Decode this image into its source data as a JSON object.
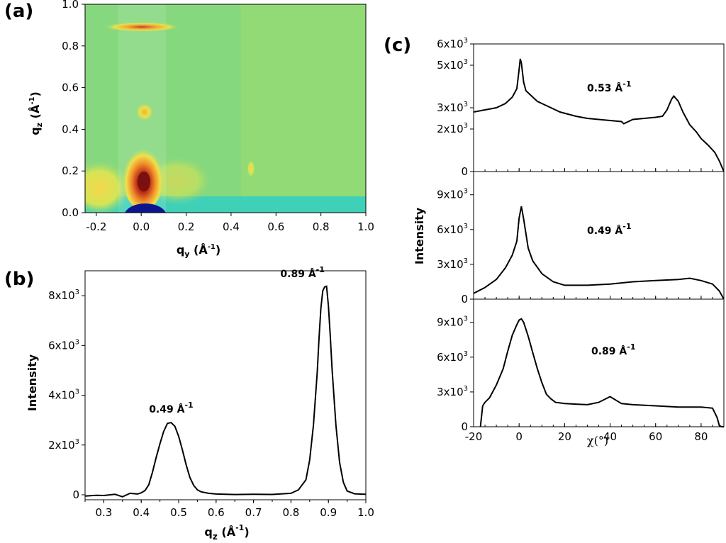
{
  "panels": {
    "a": {
      "label": "(a)"
    },
    "b": {
      "label": "(b)"
    },
    "c": {
      "label": "(c)"
    }
  },
  "chart_data": [
    {
      "panel": "(a)",
      "type": "heatmap",
      "title": "",
      "xlabel": "q_y (Å^-1)",
      "ylabel": "q_z (Å^-1)",
      "xlim": [
        -0.25,
        1.0
      ],
      "ylim": [
        0.0,
        1.0
      ],
      "xticks": [
        "-0.2",
        "0.0",
        "0.2",
        "0.4",
        "0.6",
        "0.8",
        "1.0"
      ],
      "yticks": [
        "0.0",
        "0.2",
        "0.4",
        "0.6",
        "0.8",
        "1.0"
      ],
      "colormap": "blue-green-yellow-red",
      "highlight_band_qy": [
        -0.1,
        0.1
      ],
      "features": [
        {
          "qy": 0.0,
          "qz": 0.89,
          "note": "arc"
        },
        {
          "qy": 0.0,
          "qz": 0.47,
          "note": "spot"
        },
        {
          "qy": 0.0,
          "qz": 0.15,
          "note": "intense peak"
        },
        {
          "qy": 0.49,
          "qz": 0.2,
          "note": "spot"
        }
      ]
    },
    {
      "panel": "(b)",
      "type": "line",
      "title": "",
      "xlabel": "q_z (Å^-1)",
      "ylabel": "Intensity",
      "xlim": [
        0.25,
        1.0
      ],
      "ylim": [
        -200,
        9000
      ],
      "xticks": [
        "0.3",
        "0.4",
        "0.5",
        "0.6",
        "0.7",
        "0.8",
        "0.9",
        "1.0"
      ],
      "yticks": [
        "0",
        "2x10^3",
        "4x10^3",
        "6x10^3",
        "8x10^3"
      ],
      "annotations": [
        {
          "text": "0.49 Å^-1",
          "x": 0.48,
          "y": 2900
        },
        {
          "text": "0.89 Å^-1",
          "x": 0.89,
          "y": 8350
        }
      ],
      "series": [
        {
          "x": [
            0.25,
            0.28,
            0.3,
            0.33,
            0.35,
            0.37,
            0.39,
            0.4,
            0.41,
            0.42,
            0.43,
            0.44,
            0.45,
            0.46,
            0.47,
            0.48,
            0.49,
            0.5,
            0.51,
            0.52,
            0.53,
            0.54,
            0.55,
            0.56,
            0.58,
            0.6,
            0.65,
            0.7,
            0.75,
            0.8,
            0.82,
            0.84,
            0.85,
            0.86,
            0.87,
            0.875,
            0.88,
            0.885,
            0.89,
            0.895,
            0.9,
            0.905,
            0.91,
            0.92,
            0.93,
            0.94,
            0.95,
            0.97,
            1.0
          ],
          "y": [
            -50,
            -20,
            -30,
            20,
            -80,
            60,
            30,
            80,
            170,
            400,
            900,
            1500,
            2050,
            2550,
            2870,
            2900,
            2750,
            2350,
            1800,
            1200,
            700,
            380,
            200,
            120,
            60,
            30,
            10,
            20,
            15,
            60,
            200,
            600,
            1400,
            2800,
            4900,
            6300,
            7500,
            8200,
            8350,
            8380,
            7600,
            6400,
            5000,
            2800,
            1300,
            500,
            150,
            40,
            20
          ]
        }
      ]
    },
    {
      "panel": "(c)",
      "type": "line",
      "title": "",
      "xlabel": "χ(°)",
      "ylabel": "Intensity",
      "xlim": [
        -20,
        90
      ],
      "xticks": [
        "-20",
        "0",
        "20",
        "40",
        "60",
        "80"
      ],
      "subplots": [
        {
          "label": "0.53 Å^-1",
          "ylim": [
            0,
            6000
          ],
          "yticks": [
            "0",
            "2x10^3",
            "3x10^3",
            "5x10^3",
            "6x10^3"
          ],
          "series": [
            {
              "x": [
                -20,
                -15,
                -10,
                -6,
                -3,
                -1,
                0,
                0.5,
                1,
                2,
                3,
                5,
                8,
                12,
                18,
                25,
                30,
                40,
                45,
                46,
                50,
                55,
                60,
                63,
                65,
                67,
                68,
                70,
                72,
                75,
                78,
                80,
                83,
                86,
                88,
                90
              ],
              "y": [
                2800,
                2900,
                3000,
                3200,
                3500,
                3900,
                4800,
                5300,
                5100,
                4200,
                3800,
                3600,
                3300,
                3100,
                2800,
                2600,
                2500,
                2400,
                2350,
                2250,
                2450,
                2500,
                2550,
                2600,
                2900,
                3400,
                3550,
                3300,
                2800,
                2200,
                1850,
                1550,
                1250,
                900,
                500,
                0
              ]
            }
          ]
        },
        {
          "label": "0.49 Å^-1",
          "ylim": [
            0,
            11000
          ],
          "yticks": [
            "0",
            "3x10^3",
            "6x10^3",
            "9x10^3"
          ],
          "series": [
            {
              "x": [
                -20,
                -15,
                -10,
                -6,
                -3,
                -1,
                0,
                1,
                2,
                4,
                6,
                10,
                15,
                20,
                30,
                40,
                50,
                60,
                70,
                75,
                80,
                85,
                88,
                90
              ],
              "y": [
                500,
                1000,
                1700,
                2700,
                3800,
                5000,
                7000,
                8000,
                6900,
                4400,
                3300,
                2200,
                1500,
                1200,
                1200,
                1300,
                1500,
                1600,
                1700,
                1800,
                1600,
                1300,
                700,
                0
              ]
            }
          ]
        },
        {
          "label": "0.89 Å^-1",
          "ylim": [
            0,
            11000
          ],
          "yticks": [
            "0",
            "3x10^3",
            "6x10^3",
            "9x10^3"
          ],
          "series": [
            {
              "x": [
                -17,
                -16,
                -15,
                -13,
                -10,
                -7,
                -5,
                -3,
                -1,
                0,
                1,
                2,
                4,
                6,
                8,
                10,
                12,
                14,
                16,
                20,
                25,
                30,
                35,
                40,
                45,
                50,
                60,
                70,
                80,
                85,
                87,
                88,
                89,
                90
              ],
              "y": [
                0,
                1800,
                2100,
                2500,
                3600,
                5000,
                6500,
                7900,
                8800,
                9200,
                9300,
                9000,
                7800,
                6400,
                5000,
                3800,
                2800,
                2400,
                2100,
                2000,
                1950,
                1900,
                2100,
                2600,
                2000,
                1900,
                1800,
                1700,
                1700,
                1600,
                800,
                100,
                0,
                0
              ]
            }
          ]
        }
      ]
    }
  ]
}
